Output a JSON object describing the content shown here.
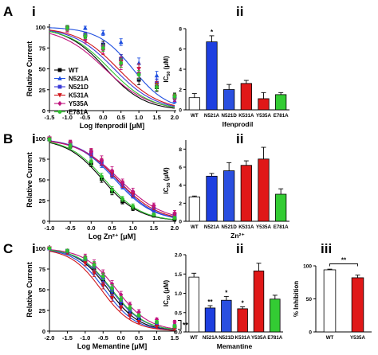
{
  "series_styles": [
    {
      "name": "WT",
      "color": "#000000",
      "marker": "square"
    },
    {
      "name": "N521A",
      "color": "#1f4fe0",
      "marker": "triangle"
    },
    {
      "name": "N521D",
      "color": "#3b3bd8",
      "marker": "square"
    },
    {
      "name": "K531A",
      "color": "#d0161c",
      "marker": "triangle-down"
    },
    {
      "name": "Y535A",
      "color": "#c0147e",
      "marker": "diamond"
    },
    {
      "name": "E781A",
      "color": "#2fc22f",
      "marker": "circle"
    }
  ],
  "bar_fills": {
    "WT": "#ffffff",
    "N521A": "#1e3fe0",
    "N521D": "#2a4fe0",
    "K531A": "#e01818",
    "Y535A": "#e01818",
    "E781A": "#33cc33"
  },
  "chart_data": [
    {
      "id": "A-i",
      "panel_letter": "A",
      "sub_label": "i",
      "type": "line",
      "xlabel": "Log Ifenprodil [μM]",
      "ylabel": "Relative Current",
      "xlim": [
        -1.5,
        2.0
      ],
      "ylim": [
        0,
        100
      ],
      "xticks": [
        -1.5,
        -1.0,
        -0.5,
        0.0,
        0.5,
        1.0,
        1.5,
        2.0
      ],
      "xtick_labels": [
        "-1.5",
        "-1.0",
        "-0.5",
        "0.0",
        "0.5",
        "1.0",
        "1.5",
        "2.0"
      ],
      "yticks": [
        0,
        25,
        50,
        75,
        100
      ],
      "ytick_labels": [
        "0",
        "25",
        "50",
        "75",
        "100"
      ],
      "x": [
        -1.0,
        -0.5,
        0.0,
        0.5,
        1.0,
        1.5,
        2.0
      ],
      "legend": {
        "position": "left",
        "entries": [
          "WT",
          "N521A",
          "N521D",
          "K531A",
          "Y535A",
          "E781A"
        ]
      },
      "series": [
        {
          "name": "WT",
          "values": [
            99,
            90,
            79,
            62,
            37,
            28,
            17
          ],
          "errors": [
            3,
            3,
            4,
            5,
            6,
            5,
            4
          ],
          "fit": {
            "ic50_log": 0.08,
            "hill": 0.8
          }
        },
        {
          "name": "N521A",
          "values": [
            100,
            99,
            93,
            82,
            57,
            42,
            12
          ],
          "errors": [
            2,
            2,
            3,
            4,
            6,
            5,
            3
          ],
          "fit": {
            "ic50_log": 0.83,
            "hill": 0.9
          }
        },
        {
          "name": "N521D",
          "values": [
            99,
            91,
            77,
            62,
            44,
            33,
            16
          ],
          "errors": [
            3,
            3,
            4,
            5,
            7,
            5,
            3
          ],
          "fit": {
            "ic50_log": 0.31,
            "hill": 0.75
          }
        },
        {
          "name": "K531A",
          "values": [
            98,
            88,
            72,
            58,
            50,
            31,
            17
          ],
          "errors": [
            3,
            4,
            5,
            6,
            6,
            4,
            3
          ],
          "fit": {
            "ic50_log": 0.42,
            "hill": 0.75
          }
        },
        {
          "name": "Y535A",
          "values": [
            97,
            85,
            73,
            55,
            45,
            28,
            14
          ],
          "errors": [
            3,
            4,
            5,
            6,
            6,
            4,
            3
          ],
          "fit": {
            "ic50_log": 0.05,
            "hill": 0.7
          }
        },
        {
          "name": "E781A",
          "values": [
            99,
            89,
            75,
            57,
            43,
            28,
            17
          ],
          "errors": [
            3,
            3,
            4,
            5,
            5,
            4,
            3
          ],
          "fit": {
            "ic50_log": 0.18,
            "hill": 0.75
          }
        }
      ]
    },
    {
      "id": "A-ii",
      "sub_label": "ii",
      "type": "bar",
      "xlabel": "Ifenprodil",
      "ylabel": "IC50 (μM)",
      "ylabel_parts": {
        "main": "IC",
        "sub": "50",
        "tail": " (μM)"
      },
      "ylim": [
        0,
        8
      ],
      "yticks": [
        0,
        2,
        4,
        6,
        8
      ],
      "ytick_labels": [
        "0",
        "2",
        "4",
        "6",
        "8"
      ],
      "categories": [
        "WT",
        "N521A",
        "N521D",
        "K531A",
        "Y535A",
        "E781A"
      ],
      "values": [
        1.2,
        6.7,
        2.0,
        2.6,
        1.1,
        1.5
      ],
      "errors": [
        0.4,
        0.6,
        0.5,
        0.3,
        0.6,
        0.2
      ],
      "significance": [
        "",
        "*",
        "",
        "",
        "",
        ""
      ]
    },
    {
      "id": "B-i",
      "panel_letter": "B",
      "sub_label": "i",
      "type": "line",
      "xlabel": "Log Zn²⁺ [μM]",
      "ylabel": "Relative Current",
      "xlim": [
        -1.0,
        2.0
      ],
      "ylim": [
        0,
        100
      ],
      "xticks": [
        -1.0,
        -0.5,
        0.0,
        0.5,
        1.0,
        1.5,
        2.0
      ],
      "xtick_labels": [
        "-1.0",
        "-0.5",
        "0.0",
        "0.5",
        "1.0",
        "1.5",
        "2.0"
      ],
      "yticks": [
        0,
        25,
        50,
        75,
        100
      ],
      "ytick_labels": [
        "0",
        "25",
        "50",
        "75",
        "100"
      ],
      "x": [
        -1.0,
        -0.5,
        0.0,
        0.25,
        0.5,
        0.75,
        1.0,
        1.5,
        2.0
      ],
      "series": [
        {
          "name": "WT",
          "values": [
            99,
            91,
            70,
            51,
            36,
            24,
            16,
            7,
            3
          ],
          "errors": [
            2,
            3,
            4,
            4,
            4,
            3,
            3,
            2,
            2
          ],
          "fit": {
            "ic50_log": 0.28,
            "hill": 1.0
          }
        },
        {
          "name": "N521A",
          "values": [
            100,
            94,
            81,
            69,
            56,
            43,
            31,
            14,
            6
          ],
          "errors": [
            2,
            3,
            4,
            4,
            4,
            4,
            3,
            3,
            2
          ],
          "fit": {
            "ic50_log": 0.58,
            "hill": 0.95
          }
        },
        {
          "name": "N521D",
          "values": [
            100,
            94,
            82,
            71,
            57,
            44,
            32,
            15,
            7
          ],
          "errors": [
            2,
            3,
            4,
            4,
            4,
            4,
            3,
            3,
            2
          ],
          "fit": {
            "ic50_log": 0.62,
            "hill": 0.95
          }
        },
        {
          "name": "K531A",
          "values": [
            100,
            94,
            83,
            72,
            58,
            45,
            33,
            17,
            8
          ],
          "errors": [
            2,
            3,
            4,
            4,
            4,
            4,
            3,
            3,
            2
          ],
          "fit": {
            "ic50_log": 0.64,
            "hill": 0.9
          }
        },
        {
          "name": "Y535A",
          "values": [
            100,
            95,
            84,
            74,
            61,
            47,
            36,
            19,
            10
          ],
          "errors": [
            2,
            3,
            4,
            5,
            5,
            4,
            4,
            3,
            3
          ],
          "fit": {
            "ic50_log": 0.69,
            "hill": 0.85
          }
        },
        {
          "name": "E781A",
          "values": [
            99,
            91,
            72,
            54,
            38,
            27,
            18,
            8,
            4
          ],
          "errors": [
            2,
            3,
            4,
            4,
            4,
            3,
            3,
            2,
            2
          ],
          "fit": {
            "ic50_log": 0.33,
            "hill": 1.0
          }
        }
      ]
    },
    {
      "id": "B-ii",
      "sub_label": "ii",
      "type": "bar",
      "xlabel": "Zn²⁺",
      "ylabel": "IC50 (μM)",
      "ylabel_parts": {
        "main": "IC",
        "sub": "50",
        "tail": " (μM)"
      },
      "ylim": [
        0,
        9
      ],
      "yticks": [
        0,
        2,
        4,
        6,
        8
      ],
      "ytick_labels": [
        "0",
        "2",
        "4",
        "6",
        "8"
      ],
      "categories": [
        "WT",
        "N521A",
        "N521D",
        "K531A",
        "Y535A",
        "E781A"
      ],
      "values": [
        2.7,
        5.0,
        5.6,
        6.2,
        6.9,
        3.0
      ],
      "errors": [
        0.1,
        0.3,
        0.9,
        0.5,
        1.3,
        0.6
      ],
      "significance": [
        "",
        "",
        "",
        "",
        "",
        ""
      ]
    },
    {
      "id": "C-i",
      "panel_letter": "C",
      "sub_label": "i",
      "type": "line",
      "xlabel": "Log Memantine [μM]",
      "ylabel": "Relative Current",
      "xlim": [
        -2.0,
        1.5
      ],
      "ylim": [
        0,
        100
      ],
      "xticks": [
        -2.0,
        -1.5,
        -1.0,
        -0.5,
        0.0,
        0.5,
        1.0,
        1.5
      ],
      "xtick_labels": [
        "-2.0",
        "-1.5",
        "-1.0",
        "-0.5",
        "0.0",
        "0.5",
        "1.0",
        "1.5"
      ],
      "yticks": [
        0,
        25,
        50,
        75,
        100
      ],
      "ytick_labels": [
        "0",
        "25",
        "50",
        "75",
        "100"
      ],
      "x": [
        -2.0,
        -1.5,
        -1.0,
        -0.75,
        -0.5,
        -0.25,
        0.0,
        0.25,
        0.5,
        1.0,
        1.5
      ],
      "bracket_label": "**",
      "series": [
        {
          "name": "WT",
          "values": [
            100,
            96,
            86,
            76,
            62,
            47,
            34,
            23,
            15,
            8,
            5
          ],
          "errors": [
            1,
            2,
            3,
            4,
            4,
            4,
            3,
            3,
            2,
            2,
            2
          ],
          "fit": {
            "ic50_log": -0.35,
            "hill": 1.0
          }
        },
        {
          "name": "N521A",
          "values": [
            100,
            96,
            85,
            73,
            58,
            43,
            31,
            21,
            14,
            7,
            4
          ],
          "errors": [
            1,
            2,
            3,
            4,
            4,
            4,
            3,
            3,
            2,
            2,
            1
          ],
          "fit": {
            "ic50_log": -0.45,
            "hill": 1.0
          }
        },
        {
          "name": "N521D",
          "values": [
            100,
            97,
            87,
            78,
            64,
            50,
            37,
            26,
            18,
            10,
            6
          ],
          "errors": [
            1,
            2,
            3,
            4,
            4,
            4,
            3,
            3,
            2,
            2,
            2
          ],
          "fit": {
            "ic50_log": -0.28,
            "hill": 0.95
          }
        },
        {
          "name": "K531A",
          "values": [
            100,
            95,
            82,
            70,
            55,
            40,
            28,
            18,
            11,
            5,
            3
          ],
          "errors": [
            1,
            2,
            3,
            4,
            4,
            4,
            3,
            3,
            2,
            2,
            1
          ],
          "fit": {
            "ic50_log": -0.55,
            "hill": 1.0
          }
        },
        {
          "name": "Y535A",
          "values": [
            100,
            97,
            90,
            82,
            70,
            57,
            44,
            32,
            23,
            14,
            11
          ],
          "errors": [
            1,
            2,
            3,
            4,
            4,
            4,
            4,
            3,
            3,
            2,
            2
          ],
          "fit": {
            "ic50_log": -0.12,
            "hill": 0.95
          }
        },
        {
          "name": "E781A",
          "values": [
            100,
            97,
            88,
            80,
            66,
            52,
            39,
            28,
            19,
            11,
            6
          ],
          "errors": [
            1,
            2,
            3,
            4,
            4,
            4,
            3,
            3,
            2,
            2,
            2
          ],
          "fit": {
            "ic50_log": -0.25,
            "hill": 0.95
          }
        }
      ]
    },
    {
      "id": "C-ii",
      "sub_label": "ii",
      "type": "bar",
      "xlabel": "Memantine",
      "ylabel": "IC50 (μM)",
      "ylabel_parts": {
        "main": "IC",
        "sub": "50",
        "tail": " (μM)"
      },
      "ylim": [
        0,
        2.0
      ],
      "yticks": [
        0,
        0.5,
        1.0,
        1.5,
        2.0
      ],
      "ytick_labels": [
        "0.0",
        "0.5",
        "1.0",
        "1.5",
        "2.0"
      ],
      "categories": [
        "WT",
        "N521A",
        "N521D",
        "K531A",
        "Y535A",
        "E781A"
      ],
      "values": [
        1.42,
        0.62,
        0.82,
        0.6,
        1.58,
        0.85
      ],
      "errors": [
        0.1,
        0.06,
        0.1,
        0.05,
        0.2,
        0.1
      ],
      "significance": [
        "",
        "**",
        "*",
        "*",
        "",
        ""
      ]
    },
    {
      "id": "C-iii",
      "sub_label": "iii",
      "type": "bar",
      "xlabel": "",
      "ylabel": "% Inhibition",
      "ylim": [
        0,
        100
      ],
      "yticks": [
        0,
        50,
        100
      ],
      "ytick_labels": [
        "0",
        "50",
        "100"
      ],
      "categories": [
        "WT",
        "Y535A"
      ],
      "values": [
        94,
        82
      ],
      "errors": [
        1,
        4
      ],
      "significance_bracket": "**"
    }
  ]
}
